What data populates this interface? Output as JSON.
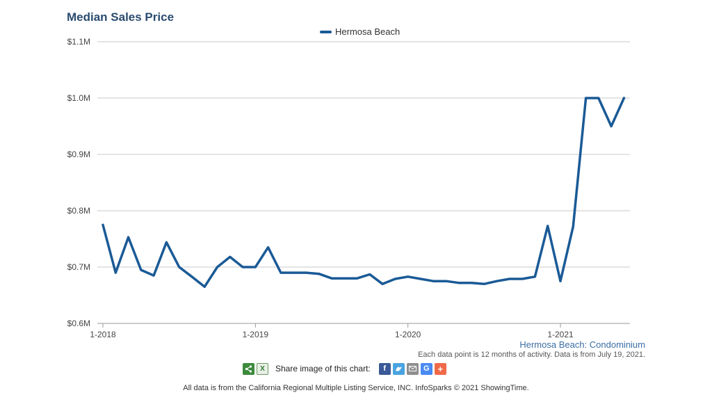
{
  "colors": {
    "line": "#1a5a96",
    "grid": "#c8c8c8",
    "axis": "#9a9a9a"
  },
  "chart_data": {
    "type": "line",
    "title": "Median Sales Price",
    "xlabel": "",
    "ylabel": "",
    "y_ticks": [
      "$0.6M",
      "$0.7M",
      "$0.8M",
      "$0.9M",
      "$1.0M",
      "$1.1M"
    ],
    "x_ticks": [
      "1-2018",
      "1-2019",
      "1-2020",
      "1-2021"
    ],
    "ylim": [
      0.6,
      1.1
    ],
    "grid": true,
    "legend_position": "top-center",
    "x": [
      "2018-01",
      "2018-02",
      "2018-03",
      "2018-04",
      "2018-05",
      "2018-06",
      "2018-07",
      "2018-08",
      "2018-09",
      "2018-10",
      "2018-11",
      "2018-12",
      "2019-01",
      "2019-02",
      "2019-03",
      "2019-04",
      "2019-05",
      "2019-06",
      "2019-07",
      "2019-08",
      "2019-09",
      "2019-10",
      "2019-11",
      "2019-12",
      "2020-01",
      "2020-02",
      "2020-03",
      "2020-04",
      "2020-05",
      "2020-06",
      "2020-07",
      "2020-08",
      "2020-09",
      "2020-10",
      "2020-11",
      "2020-12",
      "2021-01",
      "2021-02",
      "2021-03",
      "2021-04",
      "2021-05",
      "2021-06"
    ],
    "series": [
      {
        "name": "Hermosa Beach",
        "color": "#1a5a96",
        "values": [
          0.775,
          0.69,
          0.753,
          0.695,
          0.685,
          0.744,
          0.7,
          0.683,
          0.665,
          0.7,
          0.718,
          0.7,
          0.7,
          0.735,
          0.69,
          0.69,
          0.69,
          0.688,
          0.68,
          0.68,
          0.68,
          0.687,
          0.67,
          0.679,
          0.683,
          0.679,
          0.675,
          0.675,
          0.672,
          0.672,
          0.67,
          0.675,
          0.679,
          0.679,
          0.683,
          0.773,
          0.675,
          0.772,
          1.0,
          1.0,
          0.95,
          1.0
        ]
      }
    ]
  },
  "chart_subtitle": "Hermosa Beach: Condominium",
  "chart_note": "Each data point is 12 months of activity. Data is from July 19, 2021.",
  "share": {
    "label": "Share image of this chart:",
    "icons": [
      "share-icon",
      "excel-icon",
      "facebook-icon",
      "twitter-icon",
      "email-icon",
      "google-icon",
      "plus-icon"
    ]
  },
  "footer": "All data is from the California Regional Multiple Listing Service, INC. InfoSparks © 2021 ShowingTime."
}
